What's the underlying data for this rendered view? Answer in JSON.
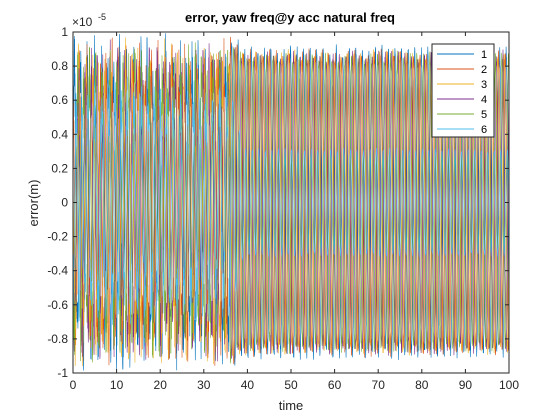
{
  "chart_data": {
    "type": "line",
    "title": "error, yaw freq@y acc natural freq",
    "xlabel": "time",
    "ylabel": "error(m)",
    "exponent_base": "×10",
    "exponent_power": "-5",
    "xlim": [
      0,
      100
    ],
    "ylim": [
      -1,
      1
    ],
    "xticks": [
      0,
      10,
      20,
      30,
      40,
      50,
      60,
      70,
      80,
      90,
      100
    ],
    "yticks": [
      -1,
      -0.8,
      -0.6,
      -0.4,
      -0.2,
      0,
      0.2,
      0.4,
      0.6,
      0.8,
      1
    ],
    "ytick_labels": [
      "-1",
      "-0.8",
      "-0.6",
      "-0.4",
      "-0.2",
      "0",
      "0.2",
      "0.4",
      "0.6",
      "0.8",
      "1"
    ],
    "grid": false,
    "legend_position": "top-right",
    "series": [
      {
        "name": "1",
        "color": "#0072BD",
        "amplitude_transient": 1.0,
        "amplitude_steady": 0.93,
        "phase": 0.0
      },
      {
        "name": "2",
        "color": "#D95319",
        "amplitude_transient": 0.98,
        "amplitude_steady": 0.91,
        "phase": 1.0
      },
      {
        "name": "3",
        "color": "#EDB120",
        "amplitude_transient": 0.97,
        "amplitude_steady": 0.9,
        "phase": 2.1
      },
      {
        "name": "4",
        "color": "#7E2F8E",
        "amplitude_transient": 0.96,
        "amplitude_steady": 0.9,
        "phase": 3.2
      },
      {
        "name": "5",
        "color": "#77AC30",
        "amplitude_transient": 0.95,
        "amplitude_steady": 0.89,
        "phase": 4.2
      },
      {
        "name": "6",
        "color": "#4DBEEE",
        "amplitude_transient": 0.72,
        "amplitude_steady": 0.32,
        "phase": 5.3
      }
    ],
    "oscillation_period": 1.5,
    "transient_end_time": 36
  }
}
